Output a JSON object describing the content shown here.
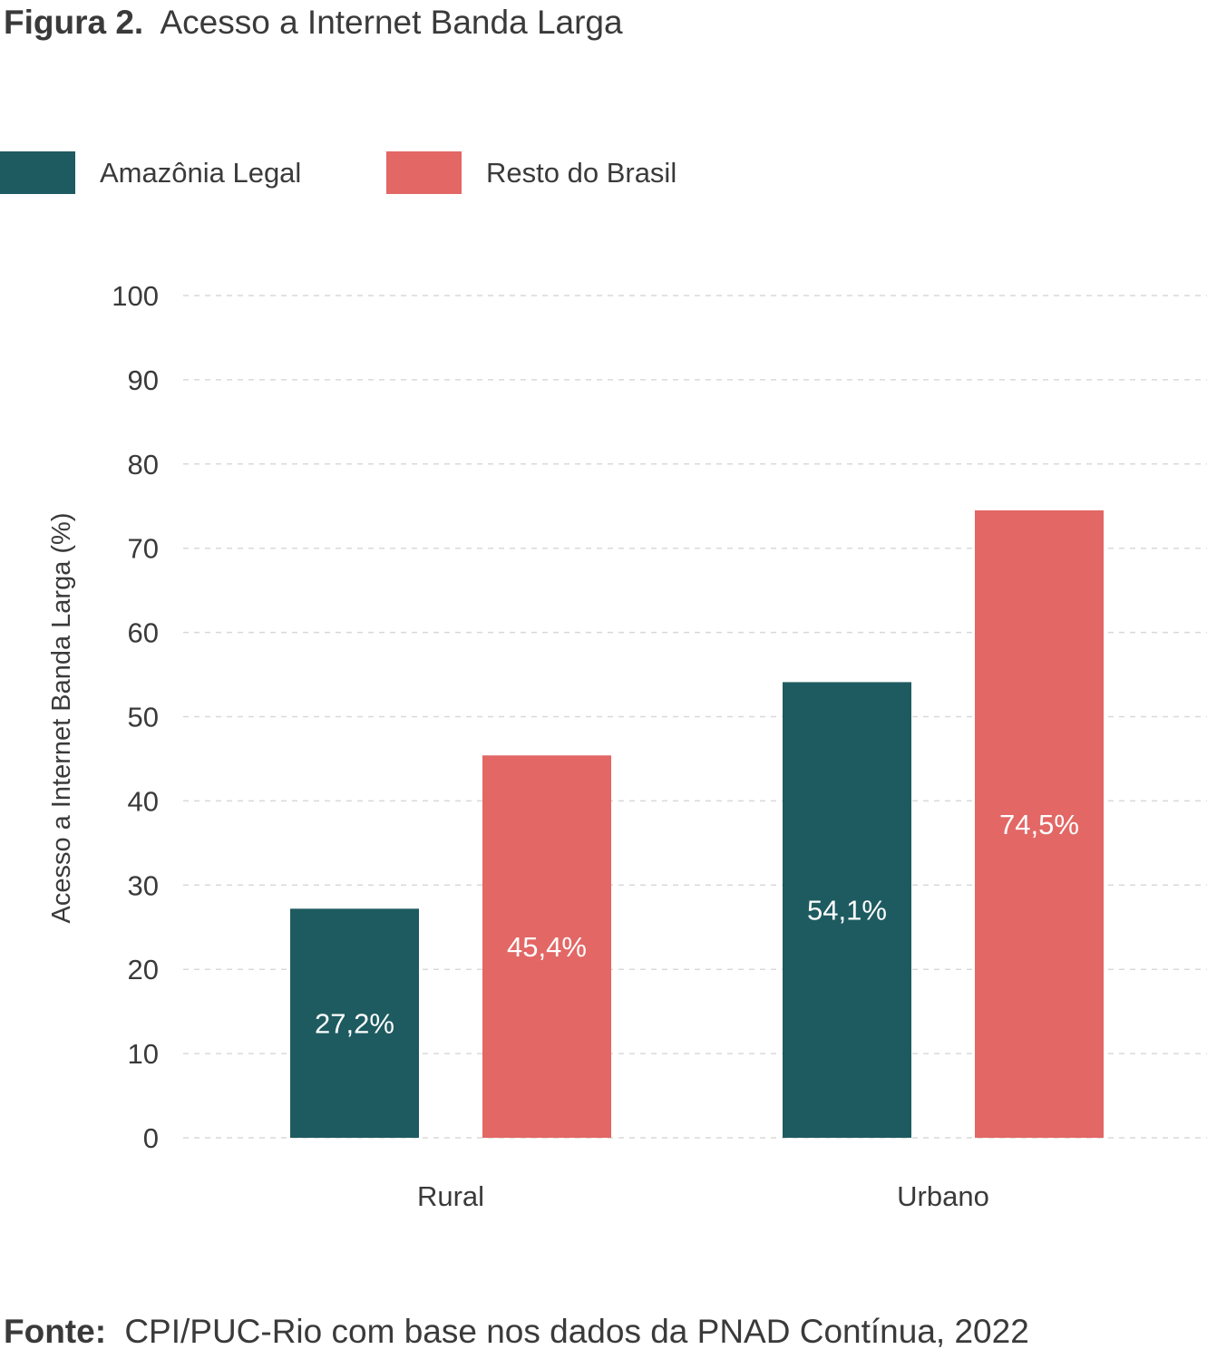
{
  "figure": {
    "title_prefix": "Figura 2.",
    "title_text": "Acesso a Internet Banda Larga",
    "source_prefix": "Fonte:",
    "source_text": "CPI/PUC-Rio com base nos dados da PNAD Contínua, 2022"
  },
  "chart_data": {
    "type": "bar",
    "categories": [
      "Rural",
      "Urbano"
    ],
    "series": [
      {
        "name": "Amazônia Legal",
        "values": [
          27.2,
          54.1
        ],
        "labels": [
          "27,2%",
          "54,1%"
        ],
        "color": "#1e5b60"
      },
      {
        "name": "Resto do Brasil",
        "values": [
          45.4,
          74.5
        ],
        "labels": [
          "45,4%",
          "74,5%"
        ],
        "color": "#e26765"
      }
    ],
    "ylabel": "Acesso a Internet Banda Larga (%)",
    "xlabel": "",
    "ylim": [
      0,
      100
    ],
    "yticks": [
      0,
      10,
      20,
      30,
      40,
      50,
      60,
      70,
      80,
      90,
      100
    ],
    "grid": "horizontal dashed",
    "legend": "top-left",
    "data_label_color": "#ffffff",
    "grid_color": "#d9d9d9",
    "text_color": "#3a3a3a"
  }
}
